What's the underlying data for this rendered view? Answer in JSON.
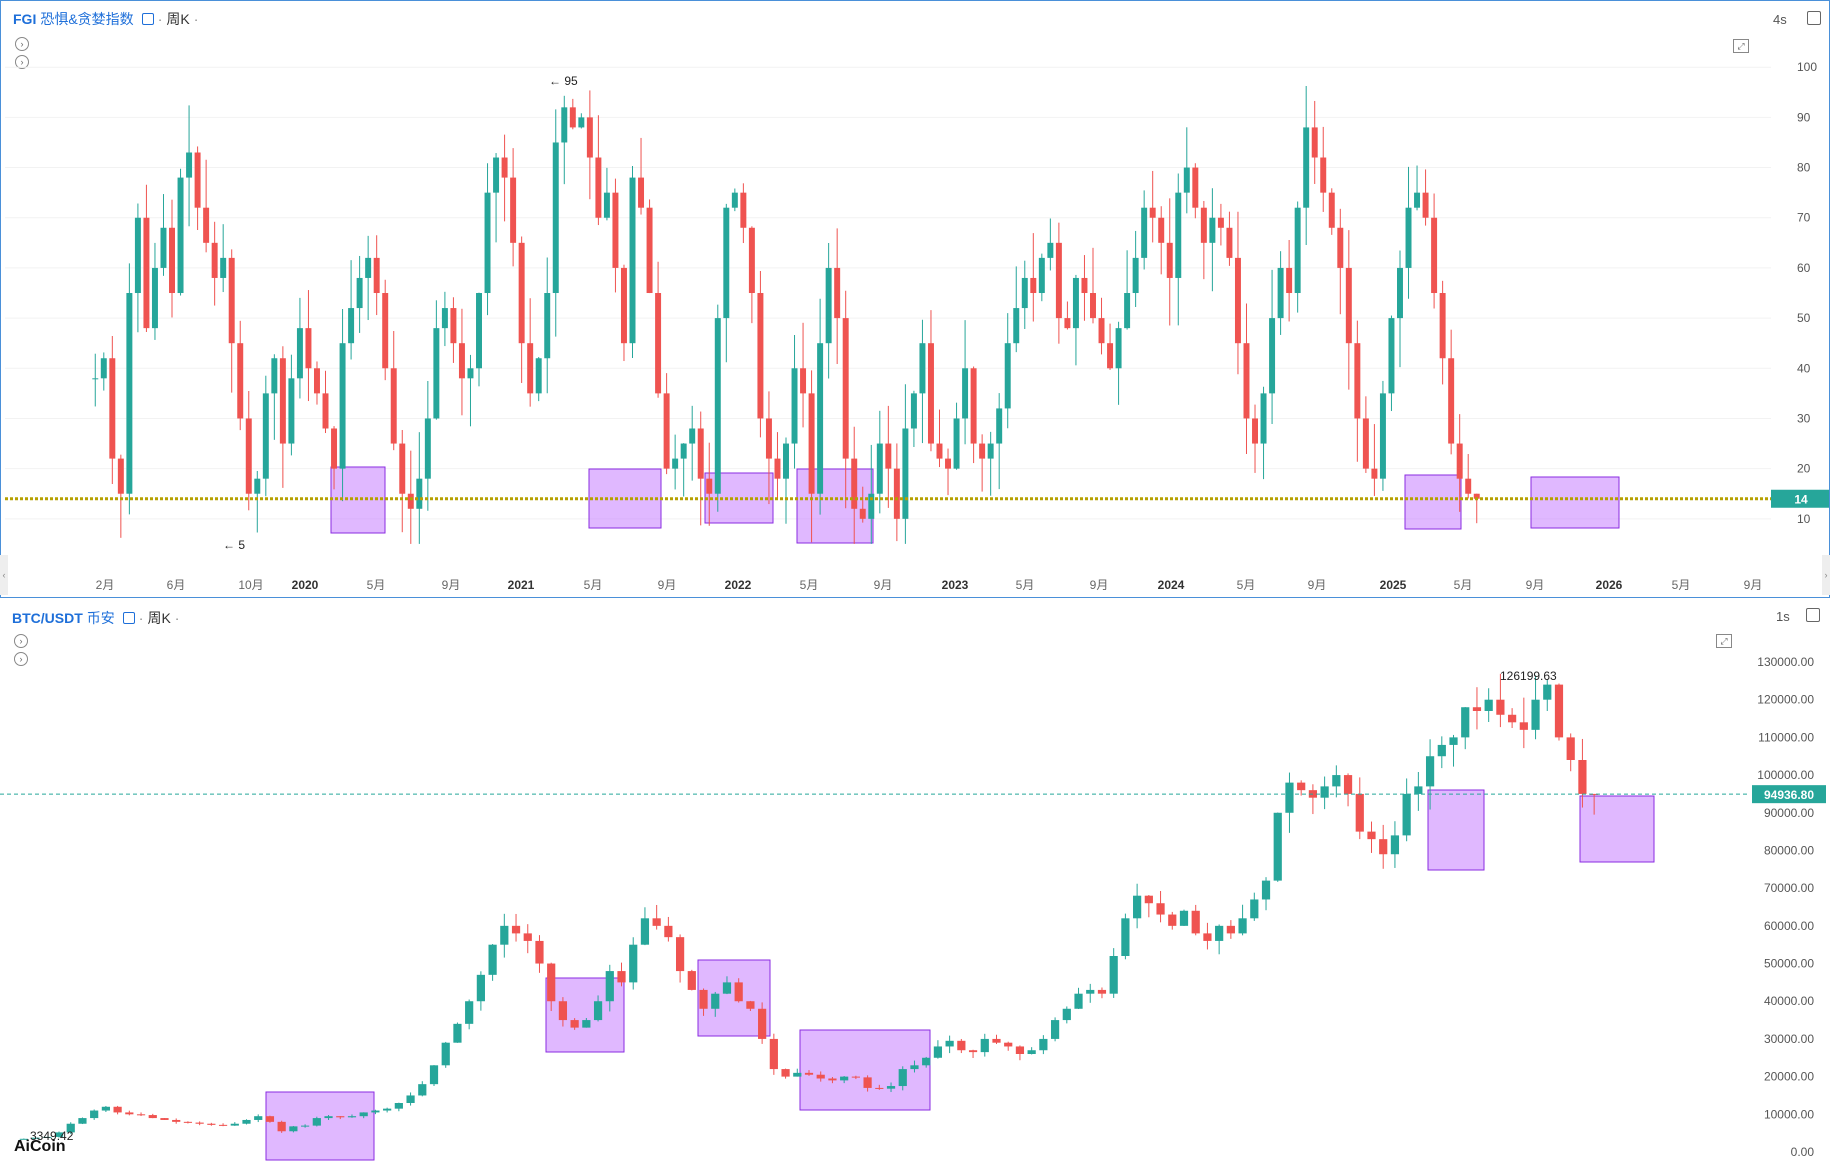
{
  "top_pane": {
    "symbol": "FGI",
    "name": "恐惧&贪婪指数",
    "interval_sep": "·",
    "interval": "周K",
    "dot": "·",
    "countdown": "4s",
    "x_labels": [
      "2月",
      "6月",
      "10月",
      "2020",
      "5月",
      "9月",
      "2021",
      "5月",
      "9月",
      "2022",
      "5月",
      "9月",
      "2023",
      "5月",
      "9月",
      "2024",
      "5月",
      "9月",
      "2025",
      "5月",
      "9月",
      "2026",
      "5月",
      "9月"
    ],
    "colors": {
      "up": "#26a69a",
      "down": "#ef5350",
      "box": "#c77dff",
      "current_line": "#b5a000",
      "current_badge": "#26a69a"
    }
  },
  "bottom_pane": {
    "symbol": "BTC/USDT",
    "name": "币安",
    "interval_sep": "·",
    "interval": "周K",
    "dot": "·",
    "countdown": "1s",
    "colors": {
      "up": "#26a69a",
      "down": "#ef5350",
      "box": "#c77dff",
      "current_line": "#26a69a",
      "current_badge": "#26a69a"
    }
  },
  "logo": "AiCoin",
  "chart_data": [
    {
      "type": "candlestick",
      "title": "FGI 恐惧&贪婪指数 周K",
      "ylim": [
        0,
        100
      ],
      "y_ticks": [
        10,
        20,
        30,
        40,
        50,
        60,
        70,
        80,
        90,
        100
      ],
      "current_value": 14,
      "max_annotation": {
        "label": "← 95",
        "value": 95
      },
      "min_annotation": {
        "label": "← 5",
        "value": 5
      },
      "x_range": [
        "2019-01",
        "2026-09"
      ],
      "closes": [
        38,
        42,
        22,
        15,
        55,
        70,
        48,
        60,
        68,
        55,
        78,
        83,
        72,
        65,
        58,
        62,
        45,
        30,
        15,
        18,
        35,
        42,
        25,
        38,
        48,
        40,
        35,
        28,
        20,
        45,
        52,
        58,
        62,
        55,
        40,
        25,
        15,
        12,
        18,
        30,
        48,
        52,
        45,
        38,
        40,
        55,
        75,
        82,
        78,
        65,
        45,
        35,
        42,
        55,
        85,
        92,
        88,
        90,
        82,
        70,
        75,
        60,
        45,
        78,
        72,
        55,
        35,
        20,
        22,
        25,
        28,
        18,
        15,
        50,
        72,
        75,
        68,
        55,
        30,
        22,
        18,
        25,
        40,
        35,
        15,
        45,
        60,
        50,
        22,
        12,
        10,
        15,
        25,
        20,
        10,
        28,
        35,
        45,
        25,
        22,
        20,
        30,
        40,
        25,
        22,
        25,
        32,
        45,
        52,
        58,
        55,
        62,
        65,
        50,
        48,
        58,
        55,
        50,
        45,
        40,
        48,
        55,
        62,
        72,
        70,
        65,
        58,
        75,
        80,
        72,
        65,
        70,
        68,
        62,
        45,
        30,
        25,
        35,
        50,
        60,
        55,
        72,
        88,
        82,
        75,
        68,
        60,
        45,
        30,
        20,
        18,
        35,
        50,
        60,
        72,
        75,
        70,
        55,
        42,
        25,
        18,
        15,
        14
      ],
      "highlight_boxes": [
        [
          "2020-03",
          "2020-05"
        ],
        [
          "2021-05",
          "2021-08"
        ],
        [
          "2021-11",
          "2022-02"
        ],
        [
          "2022-05",
          "2022-08"
        ],
        [
          "2025-02",
          "2025-04"
        ],
        [
          "2025-10",
          "2025-12"
        ]
      ]
    },
    {
      "type": "candlestick",
      "title": "BTC/USDT 币安 周K",
      "ylim": [
        0,
        130000
      ],
      "y_ticks": [
        "0.00",
        "10000.00",
        "20000.00",
        "30000.00",
        "40000.00",
        "50000.00",
        "60000.00",
        "70000.00",
        "80000.00",
        "90000.00",
        "100000.00",
        "110000.00",
        "120000.00",
        "130000.00"
      ],
      "current_value": "94936.80",
      "max_annotation": {
        "label": "126199.63",
        "value": 126199.63
      },
      "min_annotation": {
        "label": "3349.42",
        "value": 3349.42
      },
      "closes": [
        3500,
        3800,
        4000,
        5200,
        7500,
        9000,
        11000,
        12000,
        10500,
        10000,
        9800,
        9000,
        8500,
        8000,
        7800,
        7500,
        7200,
        7000,
        7500,
        8500,
        9500,
        8000,
        5500,
        6800,
        7000,
        9000,
        9500,
        9200,
        9500,
        10500,
        11000,
        11500,
        13000,
        15000,
        18000,
        23000,
        29000,
        34000,
        40000,
        47000,
        55000,
        60000,
        58000,
        56000,
        50000,
        40000,
        35000,
        33000,
        35000,
        40000,
        48000,
        45000,
        55000,
        62000,
        60000,
        57000,
        48000,
        43000,
        38000,
        42000,
        45000,
        40000,
        38000,
        30000,
        22000,
        20000,
        21000,
        20500,
        19500,
        19000,
        20000,
        19800,
        17000,
        16800,
        17500,
        22000,
        23000,
        25000,
        28000,
        29500,
        27000,
        26500,
        30000,
        29000,
        28000,
        26000,
        27000,
        30000,
        35000,
        38000,
        42000,
        43000,
        42000,
        52000,
        62000,
        68000,
        66000,
        63000,
        60000,
        64000,
        58000,
        56000,
        60000,
        58000,
        62000,
        67000,
        72000,
        90000,
        98000,
        96000,
        94000,
        97000,
        100000,
        95000,
        85000,
        83000,
        79000,
        84000,
        95000,
        97000,
        105000,
        108000,
        110000,
        118000,
        117000,
        120000,
        116000,
        114000,
        112000,
        120000,
        124000,
        110000,
        104000,
        95000,
        94936.8
      ],
      "highlight_boxes": [
        [
          "2020-03",
          "2020-09"
        ],
        [
          "2021-05",
          "2021-08"
        ],
        [
          "2021-11",
          "2022-02"
        ],
        [
          "2022-05",
          "2022-11"
        ],
        [
          "2025-02",
          "2025-04"
        ],
        [
          "2025-11",
          "2026-01"
        ]
      ]
    }
  ]
}
